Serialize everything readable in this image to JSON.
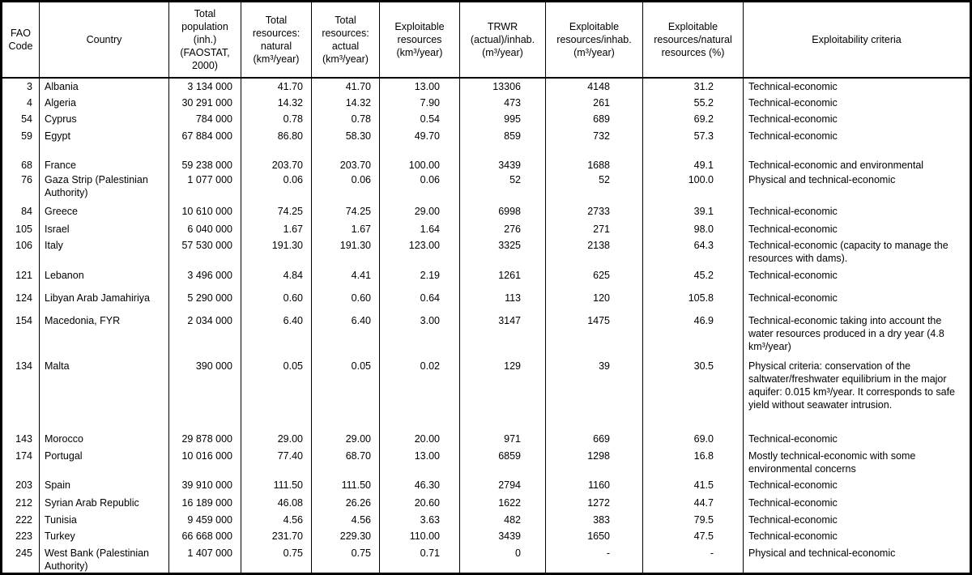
{
  "table": {
    "header": [
      "FAO Code",
      "Country",
      "Total population (inh.) (FAOSTAT, 2000)",
      "Total resources: natural (km³/year)",
      "Total resources: actual (km³/year)",
      "Exploitable resources (km³/year)",
      "TRWR (actual)/inhab. (m³/year)",
      "Exploitable resources/inhab. (m³/year)",
      "Exploitable resources/natural resources (%)",
      "Exploitability criteria"
    ],
    "rows": [
      [
        "3",
        "Albania",
        "3 134 000",
        "41.70",
        "41.70",
        "13.00",
        "13306",
        "4148",
        "31.2",
        "Technical-economic"
      ],
      [
        "4",
        "Algeria",
        "30 291 000",
        "14.32",
        "14.32",
        "7.90",
        "473",
        "261",
        "55.2",
        "Technical-economic"
      ],
      [
        "54",
        "Cyprus",
        "784 000",
        "0.78",
        "0.78",
        "0.54",
        "995",
        "689",
        "69.2",
        "Technical-economic"
      ],
      [
        "59",
        "Egypt",
        "67 884 000",
        "86.80",
        "58.30",
        "49.70",
        "859",
        "732",
        "57.3",
        "Technical-economic"
      ],
      [
        "68",
        "France",
        "59 238 000",
        "203.70",
        "203.70",
        "100.00",
        "3439",
        "1688",
        "49.1",
        "Technical-economic and environmental"
      ],
      [
        "76",
        "Gaza Strip (Palestinian Authority)",
        "1 077 000",
        "0.06",
        "0.06",
        "0.06",
        "52",
        "52",
        "100.0",
        "Physical and technical-economic"
      ],
      [
        "84",
        "Greece",
        "10 610 000",
        "74.25",
        "74.25",
        "29.00",
        "6998",
        "2733",
        "39.1",
        "Technical-economic"
      ],
      [
        "105",
        "Israel",
        "6 040 000",
        "1.67",
        "1.67",
        "1.64",
        "276",
        "271",
        "98.0",
        "Technical-economic"
      ],
      [
        "106",
        "Italy",
        "57 530 000",
        "191.30",
        "191.30",
        "123.00",
        "3325",
        "2138",
        "64.3",
        "Technical-economic (capacity to manage the resources with dams)."
      ],
      [
        "121",
        "Lebanon",
        "3 496 000",
        "4.84",
        "4.41",
        "2.19",
        "1261",
        "625",
        "45.2",
        "Technical-economic"
      ],
      [
        "124",
        "Libyan Arab Jamahiriya",
        "5 290 000",
        "0.60",
        "0.60",
        "0.64",
        "113",
        "120",
        "105.8",
        "Technical-economic"
      ],
      [
        "154",
        "Macedonia, FYR",
        "2 034 000",
        "6.40",
        "6.40",
        "3.00",
        "3147",
        "1475",
        "46.9",
        "Technical-economic taking into account the water resources produced in a dry year (4.8 km³/year)"
      ],
      [
        "134",
        "Malta",
        "390 000",
        "0.05",
        "0.05",
        "0.02",
        "129",
        "39",
        "30.5",
        "Physical criteria: conservation of the saltwater/freshwater equilibrium in the major aquifer: 0.015 km³/year. It corresponds to safe yield without seawater intrusion."
      ],
      [
        "143",
        "Morocco",
        "29 878 000",
        "29.00",
        "29.00",
        "20.00",
        "971",
        "669",
        "69.0",
        "Technical-economic"
      ],
      [
        "174",
        "Portugal",
        "10 016 000",
        "77.40",
        "68.70",
        "13.00",
        "6859",
        "1298",
        "16.8",
        "Mostly technical-economic with some environmental concerns"
      ],
      [
        "203",
        "Spain",
        "39 910 000",
        "111.50",
        "111.50",
        "46.30",
        "2794",
        "1160",
        "41.5",
        "Technical-economic"
      ],
      [
        "212",
        "Syrian Arab Republic",
        "16 189 000",
        "46.08",
        "26.26",
        "20.60",
        "1622",
        "1272",
        "44.7",
        "Technical-economic"
      ],
      [
        "222",
        "Tunisia",
        "9 459 000",
        "4.56",
        "4.56",
        "3.63",
        "482",
        "383",
        "79.5",
        "Technical-economic"
      ],
      [
        "223",
        "Turkey",
        "66 668 000",
        "231.70",
        "229.30",
        "110.00",
        "3439",
        "1650",
        "47.5",
        "Technical-economic"
      ],
      [
        "245",
        "West Bank (Palestinian Authority)",
        "1 407 000",
        "0.75",
        "0.75",
        "0.71",
        "0",
        "-",
        "-",
        "Physical and technical-economic"
      ]
    ]
  }
}
